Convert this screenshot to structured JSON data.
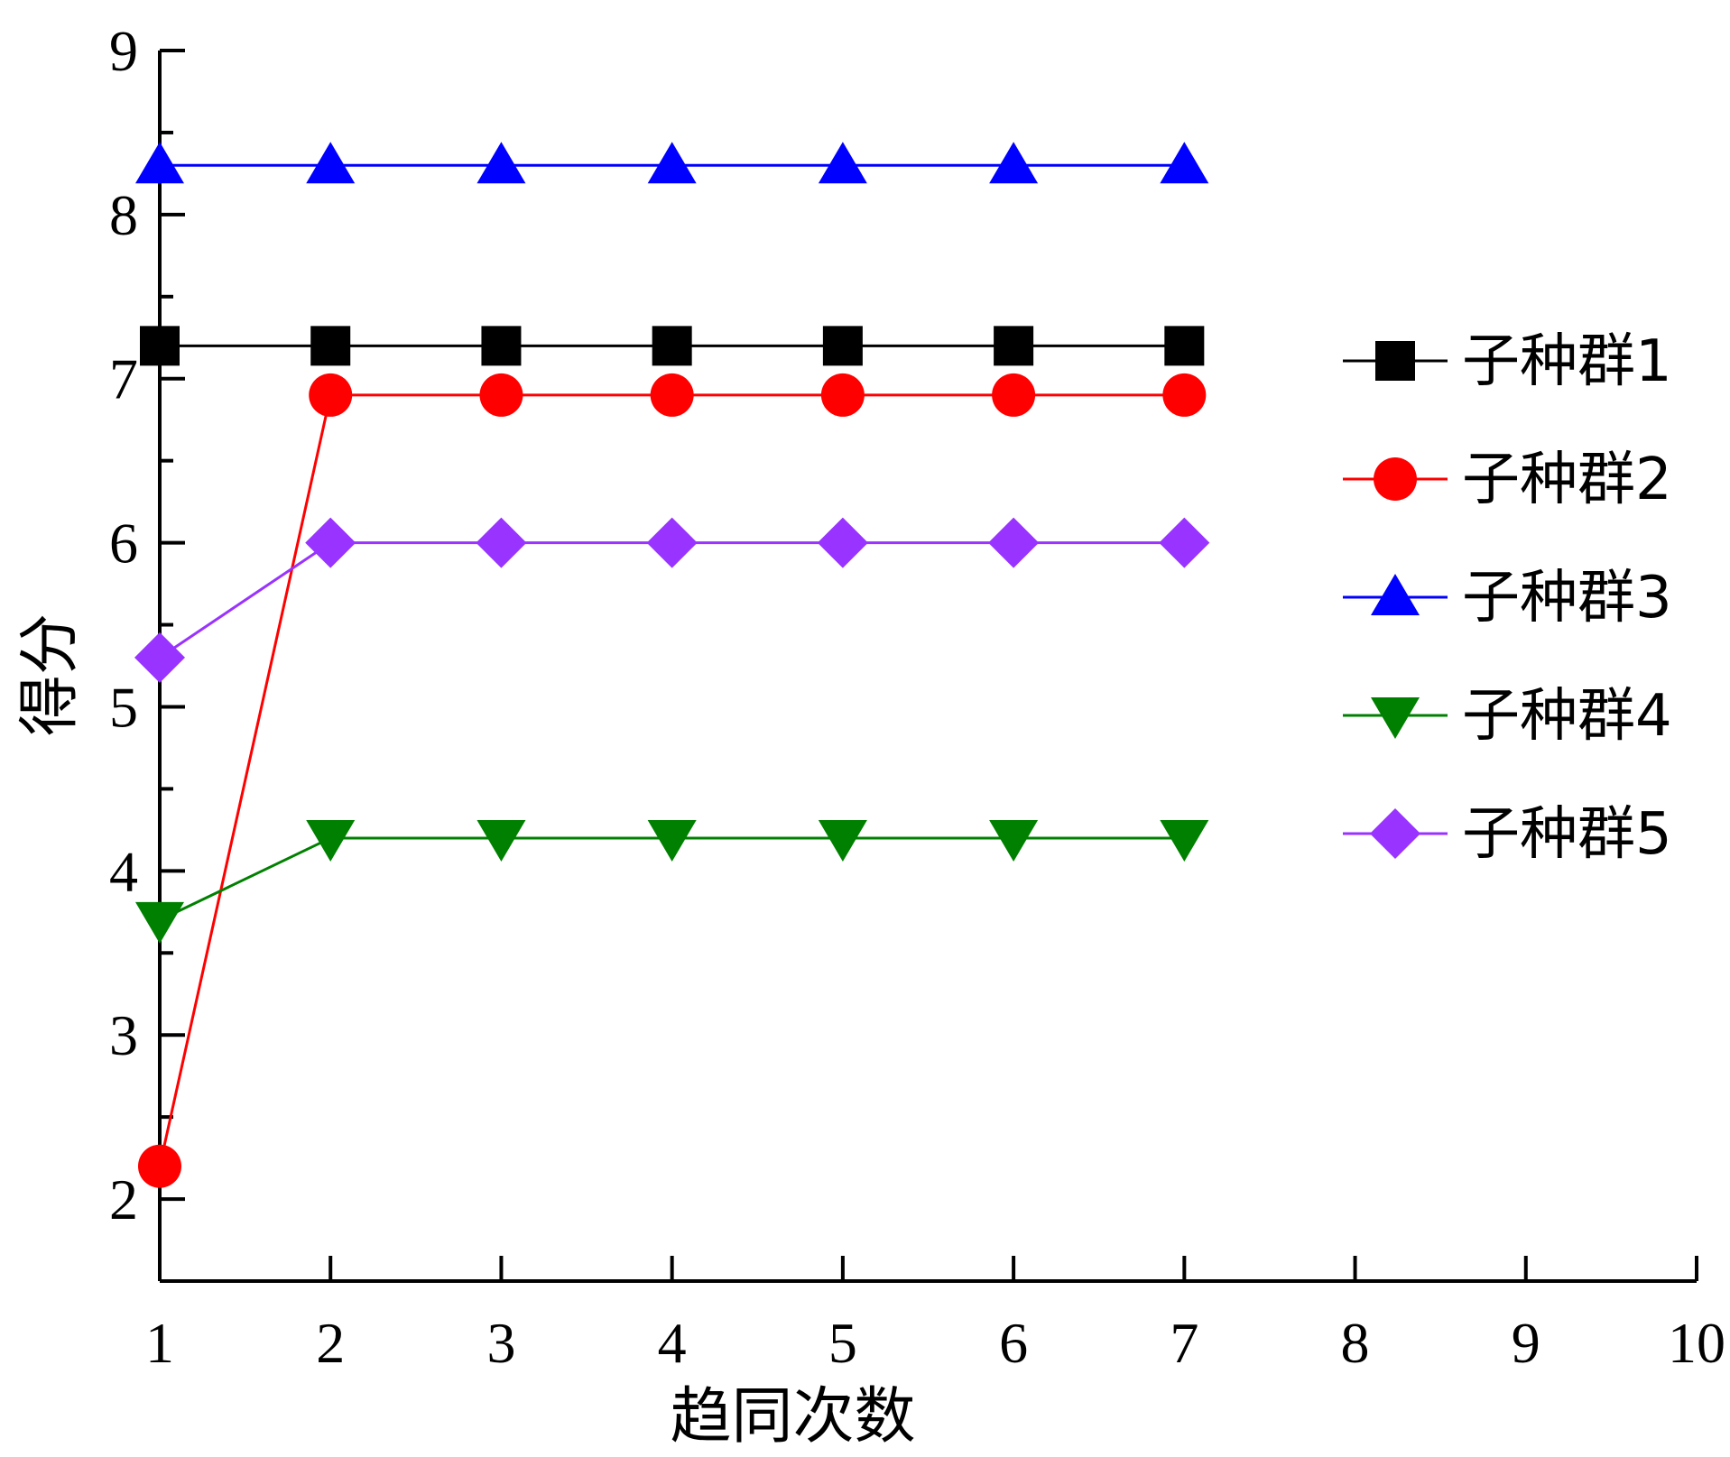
{
  "chart_data": {
    "type": "line",
    "xlabel": "趋同次数",
    "ylabel": "得分",
    "xlim": [
      1,
      10
    ],
    "ylim": [
      1.5,
      9
    ],
    "x_ticks": [
      "1",
      "2",
      "3",
      "4",
      "5",
      "6",
      "7",
      "8",
      "9",
      "10"
    ],
    "y_ticks": [
      "2",
      "3",
      "4",
      "5",
      "6",
      "7",
      "8",
      "9"
    ],
    "x": [
      1,
      2,
      3,
      4,
      5,
      6,
      7
    ],
    "legend_position": "right",
    "grid": false,
    "series": [
      {
        "name": "子种群1",
        "color": "#000000",
        "marker": "square",
        "values": [
          7.2,
          7.2,
          7.2,
          7.2,
          7.2,
          7.2,
          7.2
        ]
      },
      {
        "name": "子种群2",
        "color": "#ff0000",
        "marker": "circle",
        "values": [
          2.2,
          6.9,
          6.9,
          6.9,
          6.9,
          6.9,
          6.9
        ]
      },
      {
        "name": "子种群3",
        "color": "#0000ff",
        "marker": "triangle-up",
        "values": [
          8.3,
          8.3,
          8.3,
          8.3,
          8.3,
          8.3,
          8.3
        ]
      },
      {
        "name": "子种群4",
        "color": "#008000",
        "marker": "triangle-down",
        "values": [
          3.7,
          4.2,
          4.2,
          4.2,
          4.2,
          4.2,
          4.2
        ]
      },
      {
        "name": "子种群5",
        "color": "#9933ff",
        "marker": "diamond",
        "values": [
          5.3,
          6.0,
          6.0,
          6.0,
          6.0,
          6.0,
          6.0
        ]
      }
    ]
  }
}
